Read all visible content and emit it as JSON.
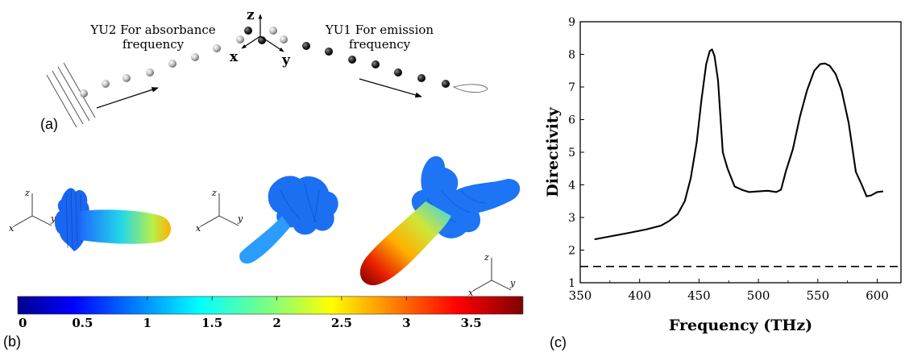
{
  "panel_a": {
    "panel_label": "(a)",
    "left_annotation": [
      "YU2 For absorbance",
      "frequency"
    ],
    "right_annotation": [
      "YU1 For emission",
      "frequency"
    ],
    "axes": {
      "x": "x",
      "y": "y",
      "z": "z"
    }
  },
  "panel_b": {
    "panel_label": "(b)",
    "axes": {
      "x": "x",
      "y": "y",
      "z": "z"
    },
    "colorbar": {
      "ticks": [
        "0",
        "0.5",
        "1",
        "1.5",
        "2",
        "2.5",
        "3",
        "3.5"
      ],
      "min": 0,
      "max": 3.9,
      "colormap": "jet"
    }
  },
  "panel_c": {
    "panel_label": "(c)"
  },
  "chart_data": {
    "type": "line",
    "xlabel": "Frequency (THz)",
    "ylabel": "Directivity",
    "xlim": [
      350,
      620
    ],
    "ylim": [
      1,
      9
    ],
    "xticks": [
      350,
      400,
      450,
      500,
      550,
      600
    ],
    "yticks": [
      1,
      2,
      3,
      4,
      5,
      6,
      7,
      8,
      9
    ],
    "grid": false,
    "series": [
      {
        "style": "solid",
        "color": "#000000",
        "x": [
          362,
          375,
          390,
          405,
          418,
          425,
          432,
          438,
          443,
          448,
          452,
          456,
          459,
          461,
          463,
          466,
          470,
          474,
          480,
          486,
          492,
          500,
          508,
          515,
          519,
          523,
          529,
          535,
          541,
          547,
          552,
          556,
          560,
          565,
          570,
          576,
          582,
          587,
          591,
          595,
          600,
          605
        ],
        "y": [
          2.33,
          2.42,
          2.52,
          2.63,
          2.75,
          2.9,
          3.1,
          3.5,
          4.2,
          5.3,
          6.6,
          7.7,
          8.1,
          8.15,
          7.95,
          7.2,
          5.0,
          4.5,
          3.95,
          3.85,
          3.78,
          3.8,
          3.82,
          3.78,
          3.85,
          4.4,
          5.1,
          6.1,
          6.9,
          7.5,
          7.7,
          7.72,
          7.65,
          7.4,
          6.9,
          5.9,
          4.4,
          4.0,
          3.65,
          3.68,
          3.78,
          3.8
        ]
      },
      {
        "style": "dashed",
        "color": "#000000",
        "x": [
          350,
          620
        ],
        "y": [
          1.5,
          1.5
        ]
      }
    ]
  }
}
